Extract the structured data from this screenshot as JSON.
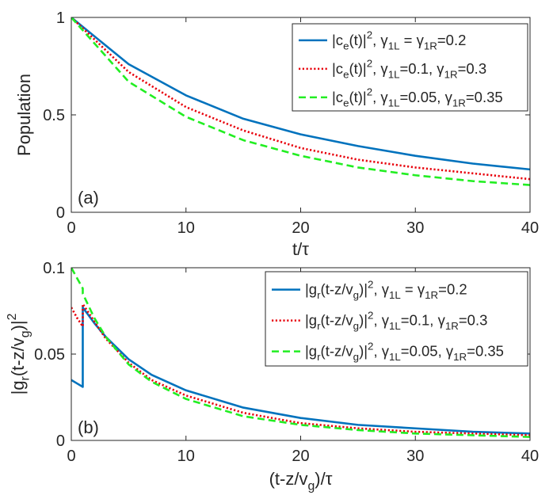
{
  "chart_data": [
    {
      "type": "line",
      "panel_label": "(a)",
      "xlabel": "t/τ",
      "ylabel": "Population",
      "xlim": [
        0,
        40
      ],
      "ylim": [
        0,
        1
      ],
      "xticks": [
        0,
        10,
        20,
        30,
        40
      ],
      "yticks": [
        0,
        0.5,
        1
      ],
      "ytick_labels": [
        "0",
        "0.5",
        "1"
      ],
      "legend_position": "top-right",
      "grid": false,
      "series": [
        {
          "name": "|c_e(t)|^2, γ_1L = γ_1R=0.2",
          "color": "#0072bd",
          "style": "solid",
          "x": [
            0,
            5,
            10,
            15,
            20,
            25,
            30,
            35,
            40
          ],
          "y": [
            1.0,
            0.76,
            0.6,
            0.48,
            0.4,
            0.34,
            0.29,
            0.25,
            0.22
          ]
        },
        {
          "name": "|c_e(t)|^2, γ_1L=0.1, γ_1R=0.3",
          "color": "#e8000b",
          "style": "dotted",
          "x": [
            0,
            5,
            10,
            15,
            20,
            25,
            30,
            35,
            40
          ],
          "y": [
            1.0,
            0.72,
            0.54,
            0.42,
            0.33,
            0.27,
            0.23,
            0.2,
            0.17
          ]
        },
        {
          "name": "|c_e(t)|^2, γ_1L=0.05, γ_1R=0.35",
          "color": "#22ee22",
          "style": "dashed",
          "x": [
            0,
            5,
            10,
            15,
            20,
            25,
            30,
            35,
            40
          ],
          "y": [
            1.0,
            0.67,
            0.49,
            0.37,
            0.29,
            0.23,
            0.19,
            0.16,
            0.14
          ]
        }
      ]
    },
    {
      "type": "line",
      "panel_label": "(b)",
      "xlabel": "(t-z/v_g)/τ",
      "ylabel": "|g_r(t-z/v_g)|^2",
      "xlim": [
        0,
        40
      ],
      "ylim": [
        0,
        0.1
      ],
      "xticks": [
        0,
        10,
        20,
        30,
        40
      ],
      "yticks": [
        0,
        0.05,
        0.1
      ],
      "ytick_labels": [
        "0",
        "0.05",
        "0.1"
      ],
      "legend_position": "top-right",
      "grid": false,
      "series": [
        {
          "name": "|g_r(t-z/v_g)|^2, γ_1L = γ_1R=0.2",
          "color": "#0072bd",
          "style": "solid",
          "x": [
            0,
            0.5,
            1,
            1.0001,
            2,
            3,
            5,
            7,
            10,
            15,
            20,
            25,
            30,
            35,
            40
          ],
          "y": [
            0.035,
            0.033,
            0.031,
            0.077,
            0.068,
            0.06,
            0.047,
            0.038,
            0.029,
            0.019,
            0.013,
            0.009,
            0.007,
            0.005,
            0.004
          ]
        },
        {
          "name": "|g_r(t-z/v_g)|^2, γ_1L=0.1, γ_1R=0.3",
          "color": "#e8000b",
          "style": "dotted",
          "x": [
            0,
            0.5,
            1,
            1.0001,
            2,
            3,
            5,
            7,
            10,
            15,
            20,
            25,
            30,
            35,
            40
          ],
          "y": [
            0.077,
            0.071,
            0.066,
            0.079,
            0.069,
            0.059,
            0.045,
            0.035,
            0.026,
            0.016,
            0.01,
            0.007,
            0.005,
            0.004,
            0.003
          ]
        },
        {
          "name": "|g_r(t-z/v_g)|^2, γ_1L=0.05, γ_1R=0.35",
          "color": "#22ee22",
          "style": "dashed",
          "x": [
            0,
            0.5,
            1,
            1.0001,
            2,
            3,
            5,
            7,
            10,
            15,
            20,
            25,
            30,
            35,
            40
          ],
          "y": [
            0.1,
            0.094,
            0.088,
            0.085,
            0.071,
            0.06,
            0.044,
            0.034,
            0.024,
            0.014,
            0.009,
            0.006,
            0.004,
            0.003,
            0.002
          ]
        }
      ]
    }
  ]
}
